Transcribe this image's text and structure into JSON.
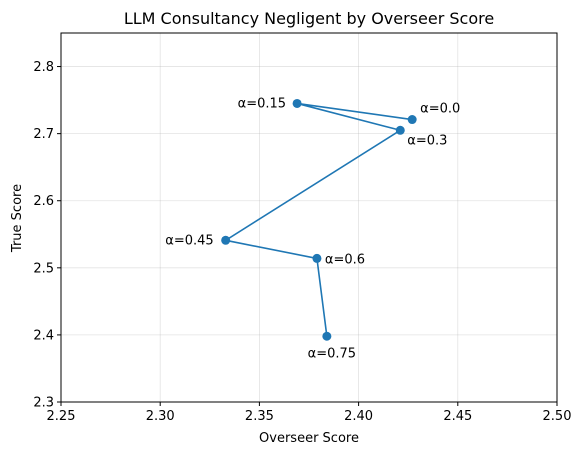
{
  "chart_data": {
    "type": "line",
    "title": "LLM Consultancy Negligent by Overseer Score",
    "xlabel": "Overseer Score",
    "ylabel": "True Score",
    "xlim": [
      2.25,
      2.5
    ],
    "ylim": [
      2.3,
      2.85
    ],
    "xticks": [
      "2.25",
      "2.30",
      "2.35",
      "2.40",
      "2.45",
      "2.50"
    ],
    "yticks": [
      "2.3",
      "2.4",
      "2.5",
      "2.6",
      "2.7",
      "2.8"
    ],
    "grid": true,
    "series_color": "#1f77b4",
    "points": [
      {
        "x": 2.427,
        "y": 2.721,
        "label": "α=0.0"
      },
      {
        "x": 2.369,
        "y": 2.745,
        "label": "α=0.15"
      },
      {
        "x": 2.421,
        "y": 2.705,
        "label": "α=0.3"
      },
      {
        "x": 2.333,
        "y": 2.541,
        "label": "α=0.45"
      },
      {
        "x": 2.379,
        "y": 2.514,
        "label": "α=0.6"
      },
      {
        "x": 2.384,
        "y": 2.398,
        "label": "α=0.75"
      }
    ]
  }
}
